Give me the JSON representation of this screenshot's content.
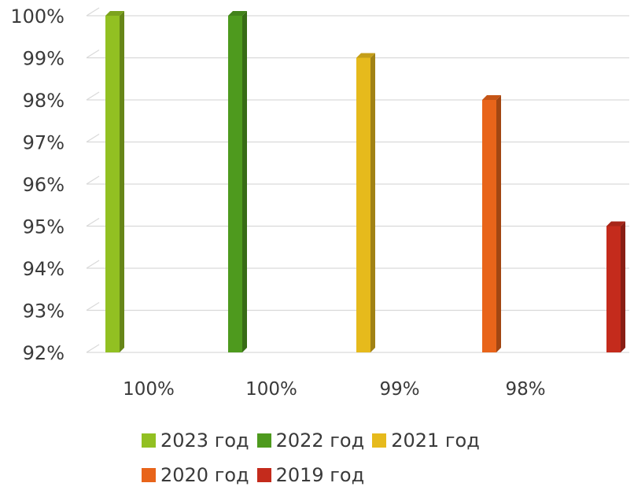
{
  "chart_data": {
    "type": "bar",
    "categories": [
      "2023 год",
      "2022 год",
      "2021 год",
      "2020 год",
      "2019 год"
    ],
    "values": [
      100,
      100,
      99,
      98,
      95
    ],
    "data_labels": [
      "100%",
      "100%",
      "99%",
      "98%",
      ""
    ],
    "colors": [
      "#92C022",
      "#4E9A1E",
      "#E6BA1C",
      "#E8641A",
      "#C42B1C"
    ],
    "title": "",
    "xlabel": "",
    "ylabel": "",
    "ylim": [
      92,
      100
    ],
    "yticks": [
      "100%",
      "99%",
      "98%",
      "97%",
      "96%",
      "95%",
      "94%",
      "93%",
      "92%"
    ],
    "grid": true,
    "legend_placement": "bottom"
  }
}
